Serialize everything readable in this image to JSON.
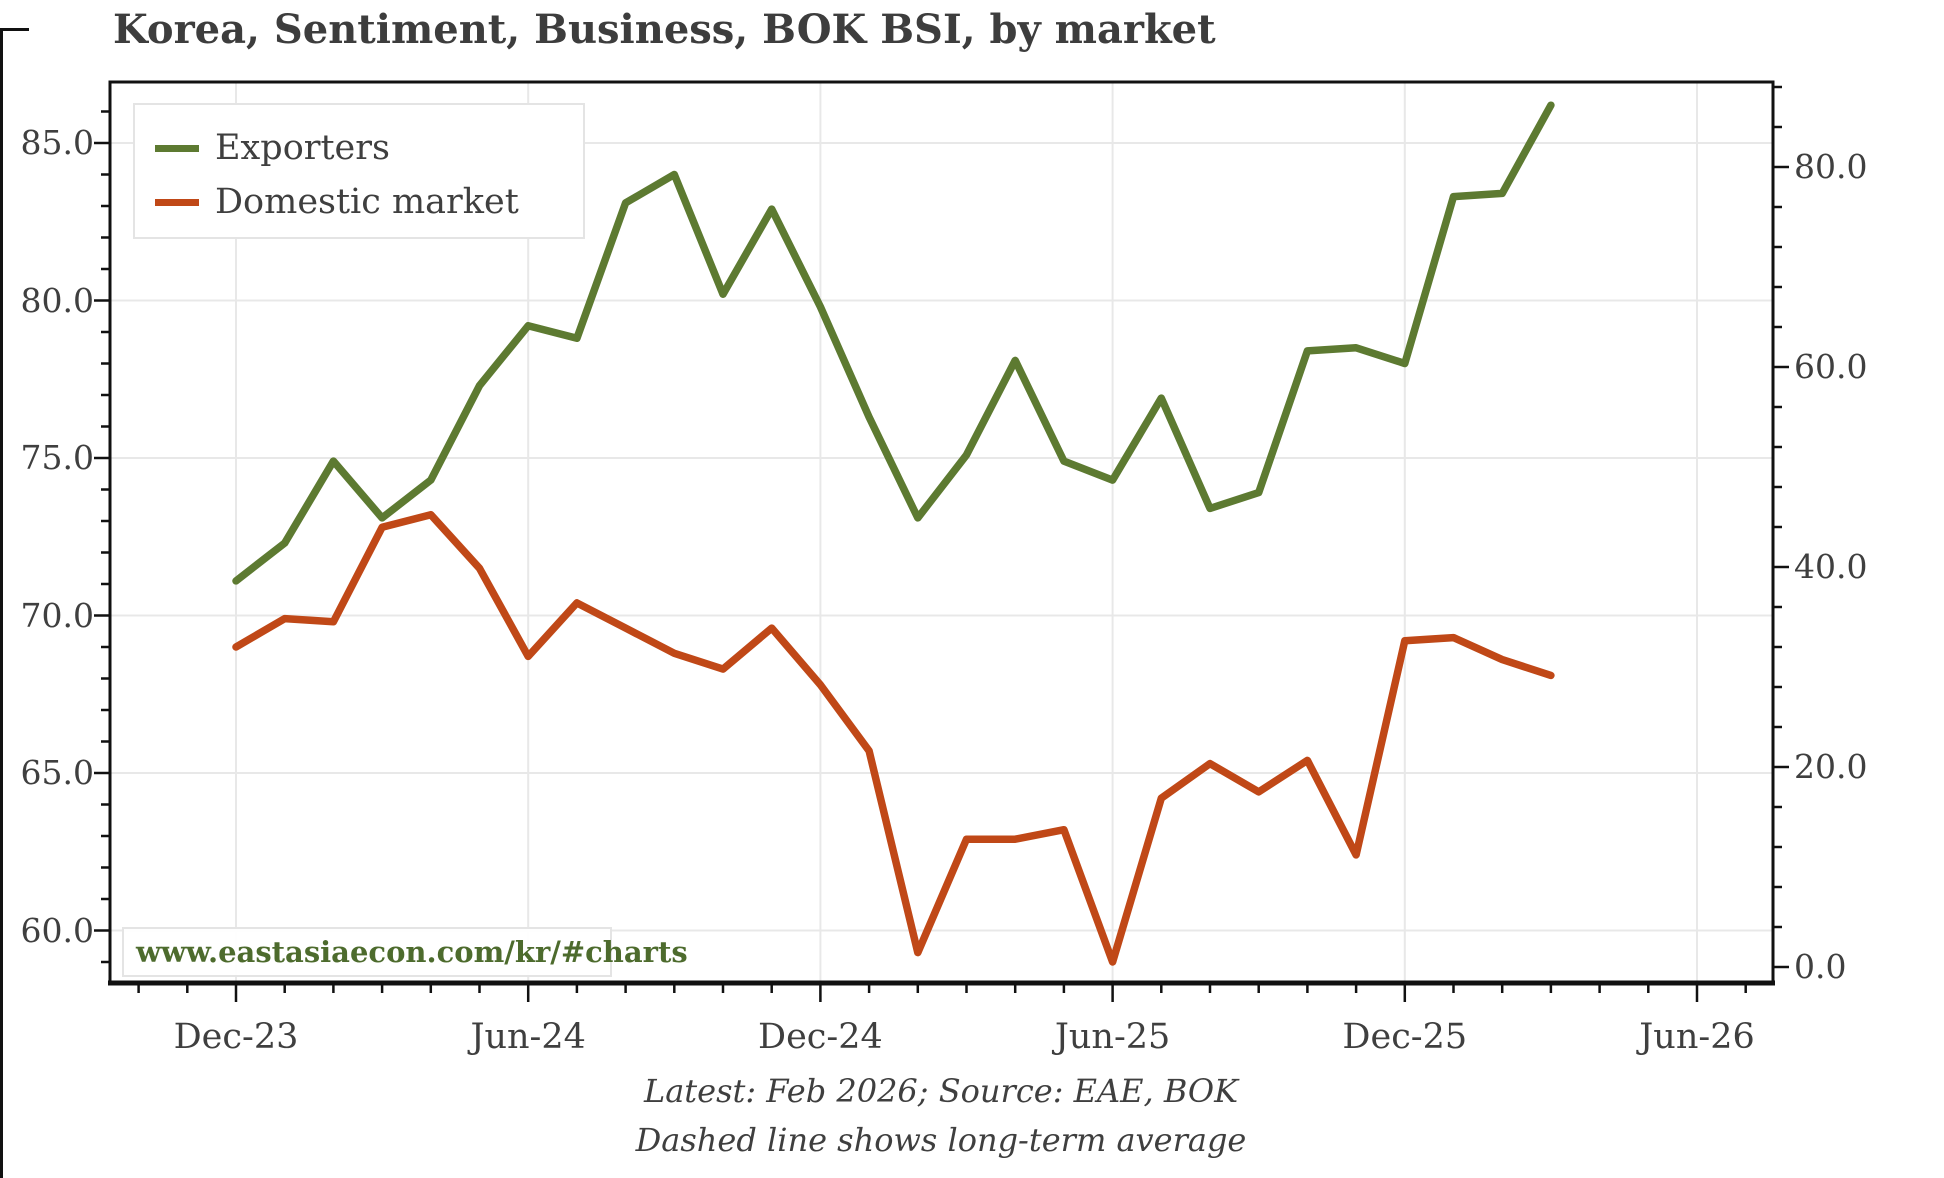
{
  "title": "Korea, Sentiment, Business, BOK BSI, by market",
  "watermark": "www.eastasiaecon.com/kr/#charts",
  "captions": {
    "line1": "Latest: Feb 2026; Source: EAE, BOK",
    "line2": "Dashed line shows long-term average"
  },
  "legend": [
    {
      "label": "Exporters",
      "color": "#5d7a31"
    },
    {
      "label": "Domestic market",
      "color": "#c04817"
    }
  ],
  "colors": {
    "exporters": "#5d7a31",
    "domestic": "#c04817",
    "grid": "#e8e8e8",
    "spine": "#111111",
    "text": "#3f3f3f",
    "watermark_text": "#4d6b2d"
  },
  "chart_data": {
    "type": "line",
    "title": "Korea, Sentiment, Business, BOK BSI, by market",
    "xlabel": "",
    "ylabel_left": "",
    "ylabel_right": "",
    "grid": true,
    "legend_position": "upper left",
    "x": [
      "Dec-23",
      "Jan-24",
      "Feb-24",
      "Mar-24",
      "Apr-24",
      "May-24",
      "Jun-24",
      "Jul-24",
      "Aug-24",
      "Sep-24",
      "Oct-24",
      "Nov-24",
      "Dec-24",
      "Jan-25",
      "Feb-25",
      "Mar-25",
      "Apr-25",
      "May-25",
      "Jun-25",
      "Jul-25",
      "Aug-25",
      "Sep-25",
      "Oct-25",
      "Nov-25",
      "Dec-25",
      "Jan-26",
      "Feb-26",
      "Mar-26"
    ],
    "series": [
      {
        "name": "Exporters",
        "color": "#5d7a31",
        "axis": "left",
        "values": [
          71.1,
          72.3,
          74.9,
          73.1,
          74.3,
          77.3,
          79.2,
          78.8,
          83.1,
          84.0,
          80.2,
          82.9,
          79.8,
          76.3,
          73.1,
          75.1,
          78.1,
          74.9,
          74.3,
          76.9,
          73.4,
          73.9,
          78.4,
          78.5,
          78.0,
          83.3,
          83.4,
          86.2
        ]
      },
      {
        "name": "Domestic market",
        "color": "#c04817",
        "axis": "left",
        "values": [
          69.0,
          69.9,
          69.8,
          72.8,
          73.2,
          71.5,
          68.7,
          70.4,
          69.6,
          68.8,
          68.3,
          69.6,
          67.8,
          65.7,
          59.3,
          62.9,
          62.9,
          63.2,
          59.0,
          64.2,
          65.3,
          64.4,
          65.4,
          62.4,
          69.2,
          69.3,
          68.6,
          68.1
        ]
      }
    ],
    "axes": {
      "left": {
        "ticks": [
          "85.0",
          "80.0",
          "75.0",
          "70.0",
          "65.0",
          "60.0"
        ],
        "lim": [
          58.4,
          87.0
        ]
      },
      "right": {
        "ticks": [
          "80.0",
          "60.0",
          "40.0",
          "20.0",
          "0.0"
        ],
        "lim": [
          -1.5,
          88.5
        ]
      },
      "x": {
        "ticks": [
          {
            "label": "Dec-23",
            "month_index": 0
          },
          {
            "label": "Jun-24",
            "month_index": 6
          },
          {
            "label": "Dec-24",
            "month_index": 12
          },
          {
            "label": "Jun-25",
            "month_index": 18
          },
          {
            "label": "Dec-25",
            "month_index": 24
          },
          {
            "label": "Jun-26",
            "month_index": 30
          }
        ]
      }
    }
  }
}
